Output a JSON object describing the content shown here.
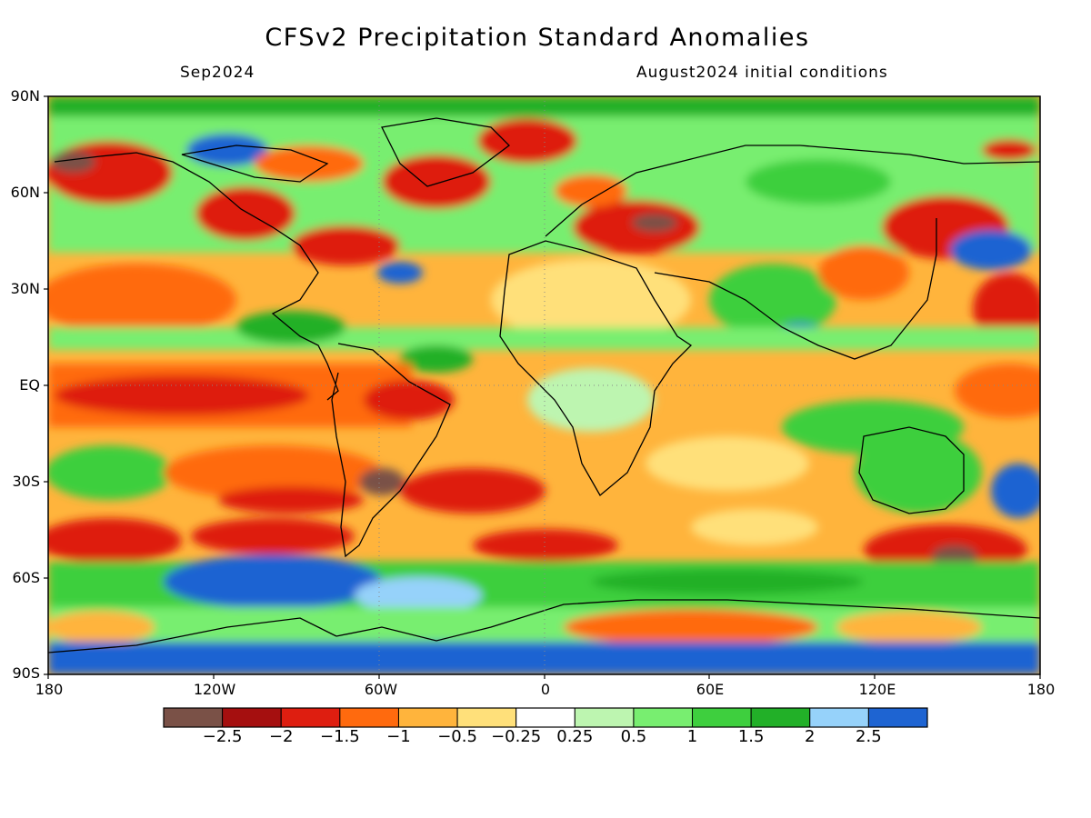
{
  "title": "CFSv2 Precipitation Standard Anomalies",
  "valid_month": "Sep2024",
  "initial_conditions": "August2024 initial conditions",
  "lat_labels": [
    "90N",
    "60N",
    "30N",
    "EQ",
    "30S",
    "60S",
    "90S"
  ],
  "lon_labels": [
    "180",
    "120W",
    "60W",
    "0",
    "60E",
    "120E",
    "180"
  ],
  "colorbar": {
    "colors": [
      "#7a5147",
      "#a50f0f",
      "#de1e10",
      "#ff6a0e",
      "#ffb43c",
      "#ffe07a",
      "#ffffff",
      "#bdf5b0",
      "#78ee70",
      "#3ecf3e",
      "#22b028",
      "#96d2fa",
      "#1e64d2"
    ],
    "labels": [
      "−2.5",
      "−2",
      "−1.5",
      "−1",
      "−0.5",
      "−0.25",
      "0.25",
      "0.5",
      "1",
      "1.5",
      "2",
      "2.5"
    ]
  }
}
